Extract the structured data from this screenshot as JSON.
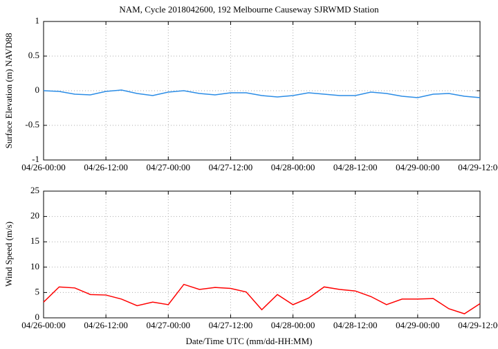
{
  "chart_data": [
    {
      "type": "line",
      "title": "NAM, Cycle 2018042600,  192 Melbourne Causeway SJRWMD Station",
      "ylabel": "Surface Elevation (m) NAVD88",
      "x": [
        "04/26-00:00",
        "04/26-03:00",
        "04/26-06:00",
        "04/26-09:00",
        "04/26-12:00",
        "04/26-15:00",
        "04/26-18:00",
        "04/26-21:00",
        "04/27-00:00",
        "04/27-03:00",
        "04/27-06:00",
        "04/27-09:00",
        "04/27-12:00",
        "04/27-15:00",
        "04/27-18:00",
        "04/27-21:00",
        "04/28-00:00",
        "04/28-03:00",
        "04/28-06:00",
        "04/28-09:00",
        "04/28-12:00",
        "04/28-15:00",
        "04/28-18:00",
        "04/28-21:00",
        "04/29-00:00",
        "04/29-03:00",
        "04/29-06:00",
        "04/29-09:00",
        "04/29-12:00"
      ],
      "series": [
        {
          "color": "#2a8ce6",
          "values": [
            0.0,
            -0.01,
            -0.05,
            -0.06,
            -0.01,
            0.01,
            -0.04,
            -0.07,
            -0.02,
            0.0,
            -0.04,
            -0.06,
            -0.03,
            -0.03,
            -0.07,
            -0.09,
            -0.07,
            -0.03,
            -0.05,
            -0.07,
            -0.07,
            -0.02,
            -0.04,
            -0.08,
            -0.1,
            -0.05,
            -0.04,
            -0.08,
            -0.1
          ]
        }
      ],
      "xlim": [
        "04/26-00:00",
        "04/29-12:00"
      ],
      "xticks": [
        "04/26-00:00",
        "04/26-12:00",
        "04/27-00:00",
        "04/27-12:00",
        "04/28-00:00",
        "04/28-12:00",
        "04/29-00:00",
        "04/29-12:00"
      ],
      "ylim": [
        -1,
        1
      ],
      "yticks": [
        -1,
        -0.5,
        0,
        0.5,
        1
      ],
      "grid": true
    },
    {
      "type": "line",
      "ylabel": "Wind Speed (m/s)",
      "xlabel": "Date/Time UTC (mm/dd-HH:MM)",
      "x": [
        "04/26-00:00",
        "04/26-03:00",
        "04/26-06:00",
        "04/26-09:00",
        "04/26-12:00",
        "04/26-15:00",
        "04/26-18:00",
        "04/26-21:00",
        "04/27-00:00",
        "04/27-03:00",
        "04/27-06:00",
        "04/27-09:00",
        "04/27-12:00",
        "04/27-15:00",
        "04/27-18:00",
        "04/27-21:00",
        "04/28-00:00",
        "04/28-03:00",
        "04/28-06:00",
        "04/28-09:00",
        "04/28-12:00",
        "04/28-15:00",
        "04/28-18:00",
        "04/28-21:00",
        "04/29-00:00",
        "04/29-03:00",
        "04/29-06:00",
        "04/29-09:00",
        "04/29-12:00"
      ],
      "series": [
        {
          "color": "#ff0000",
          "values": [
            3.1,
            6.1,
            5.9,
            4.6,
            4.5,
            3.7,
            2.4,
            3.1,
            2.6,
            6.6,
            5.6,
            6.0,
            5.8,
            5.1,
            1.6,
            4.6,
            2.6,
            3.9,
            6.1,
            5.6,
            5.3,
            4.2,
            2.6,
            3.7,
            3.7,
            3.8,
            1.8,
            0.8,
            2.8
          ]
        }
      ],
      "xlim": [
        "04/26-00:00",
        "04/29-12:00"
      ],
      "xticks": [
        "04/26-00:00",
        "04/26-12:00",
        "04/27-00:00",
        "04/27-12:00",
        "04/28-00:00",
        "04/28-12:00",
        "04/29-00:00",
        "04/29-12:00"
      ],
      "ylim": [
        0,
        25
      ],
      "yticks": [
        0,
        5,
        10,
        15,
        20,
        25
      ],
      "grid": true
    }
  ]
}
